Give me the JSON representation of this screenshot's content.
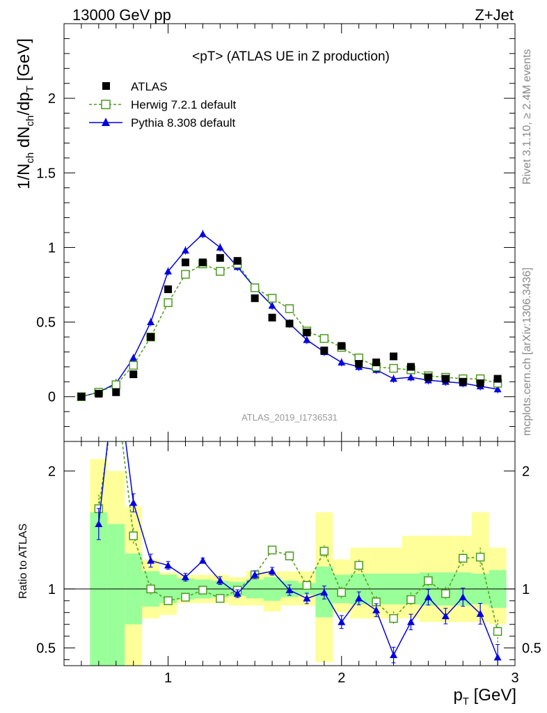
{
  "header": {
    "energy_label": "13000 GeV pp",
    "process_label": "Z+Jet",
    "plot_title": "<pT> (ATLAS UE in Z production)",
    "analysis_id": "ATLAS_2019_I1736531",
    "side_rivet": "Rivet 3.1.10, ≥ 2.4M events",
    "side_mcplots": "mcplots.cern.ch [arXiv:1306.3436]"
  },
  "chart_data": [
    {
      "type": "scatter",
      "panel": "main",
      "ylabel_main": "1/N",
      "ylabel_parts": [
        "1/N",
        "ch",
        " dN",
        "ch",
        "/dp",
        "T",
        " [GeV]"
      ],
      "xlim": [
        0.4,
        3.0
      ],
      "ylim": [
        -0.3,
        2.5
      ],
      "yticks": [
        0,
        0.5,
        1,
        1.5,
        2
      ],
      "ytick_labels": [
        "0",
        "0.5",
        "1",
        "1.5",
        "2"
      ],
      "legend_position": "top-left",
      "legend": [
        "ATLAS",
        "Herwig 7.2.1 default",
        "Pythia 8.308 default"
      ],
      "x": [
        0.5,
        0.6,
        0.7,
        0.8,
        0.9,
        1.0,
        1.1,
        1.2,
        1.3,
        1.4,
        1.5,
        1.6,
        1.7,
        1.8,
        1.9,
        2.0,
        2.1,
        2.2,
        2.3,
        2.4,
        2.5,
        2.6,
        2.7,
        2.8,
        2.9
      ],
      "series": [
        {
          "name": "ATLAS",
          "color": "#000000",
          "values": [
            0.0,
            0.02,
            0.03,
            0.15,
            0.4,
            0.72,
            0.9,
            0.9,
            0.93,
            0.91,
            0.66,
            0.53,
            0.49,
            0.43,
            0.31,
            0.34,
            0.22,
            0.23,
            0.27,
            0.2,
            0.13,
            0.12,
            0.1,
            0.09,
            0.12
          ]
        },
        {
          "name": "Herwig 7.2.1 default",
          "color": "#4c9a1e",
          "values": [
            0.0,
            0.03,
            0.08,
            0.21,
            0.4,
            0.63,
            0.82,
            0.89,
            0.84,
            0.89,
            0.73,
            0.66,
            0.59,
            0.44,
            0.39,
            0.33,
            0.26,
            0.2,
            0.19,
            0.18,
            0.14,
            0.13,
            0.12,
            0.12,
            0.09
          ]
        },
        {
          "name": "Pythia 8.308 default",
          "color": "#0000e0",
          "values": [
            0.0,
            0.03,
            0.09,
            0.26,
            0.5,
            0.84,
            0.98,
            1.09,
            1.0,
            0.87,
            0.73,
            0.61,
            0.49,
            0.38,
            0.3,
            0.23,
            0.2,
            0.18,
            0.12,
            0.13,
            0.11,
            0.1,
            0.09,
            0.07,
            0.05
          ]
        }
      ]
    },
    {
      "type": "line",
      "panel": "ratio",
      "ylabel": "Ratio to ATLAS",
      "xlabel": "p",
      "xlabel_sub": "T",
      "xlabel_unit": " [GeV]",
      "xlim": [
        0.4,
        3.0
      ],
      "ylim": [
        0.35,
        2.25
      ],
      "xticks": [
        1,
        2,
        3
      ],
      "xtick_labels": [
        "1",
        "2",
        "3"
      ],
      "yticks": [
        0.5,
        1,
        2
      ],
      "ytick_labels": [
        "0.5",
        "1",
        "2"
      ],
      "x": [
        0.6,
        0.7,
        0.8,
        0.9,
        1.0,
        1.1,
        1.2,
        1.3,
        1.4,
        1.5,
        1.6,
        1.7,
        1.8,
        1.9,
        2.0,
        2.1,
        2.2,
        2.3,
        2.4,
        2.5,
        2.6,
        2.7,
        2.8,
        2.9
      ],
      "bands": {
        "x_edges": [
          0.55,
          0.65,
          0.75,
          0.85,
          0.95,
          1.05,
          1.15,
          1.25,
          1.35,
          1.45,
          1.55,
          1.65,
          1.75,
          1.85,
          1.95,
          2.05,
          2.15,
          2.25,
          2.35,
          2.45,
          2.55,
          2.65,
          2.75,
          2.85,
          2.95
        ],
        "inner_lo": [
          0.0,
          0.0,
          0.7,
          0.85,
          0.88,
          0.91,
          0.92,
          0.93,
          0.94,
          0.92,
          0.9,
          0.93,
          0.95,
          0.76,
          0.88,
          0.87,
          0.87,
          0.87,
          0.87,
          0.86,
          0.86,
          0.86,
          0.87,
          0.84
        ],
        "inner_hi": [
          1.65,
          1.55,
          1.3,
          1.15,
          1.12,
          1.09,
          1.08,
          1.07,
          1.06,
          1.08,
          1.1,
          1.07,
          1.05,
          1.19,
          1.12,
          1.13,
          1.13,
          1.13,
          1.13,
          1.14,
          1.14,
          1.14,
          1.13,
          1.16
        ],
        "outer_lo": [
          0.0,
          0.0,
          0.0,
          0.75,
          0.78,
          0.88,
          0.88,
          0.88,
          0.86,
          0.86,
          0.81,
          0.86,
          0.86,
          0.38,
          0.8,
          0.75,
          0.75,
          0.75,
          0.75,
          0.72,
          0.72,
          0.72,
          0.72,
          0.7
        ],
        "outer_hi": [
          2.1,
          2.0,
          1.7,
          1.25,
          1.14,
          1.12,
          1.12,
          1.12,
          1.1,
          1.15,
          1.15,
          1.15,
          1.15,
          1.65,
          1.25,
          1.35,
          1.35,
          1.35,
          1.45,
          1.45,
          1.45,
          1.45,
          1.65,
          1.35
        ]
      },
      "series": [
        {
          "name": "Herwig 7.2.1 default",
          "color": "#4c9a1e",
          "values": [
            1.68,
            2.7,
            1.45,
            1.0,
            0.9,
            0.93,
            0.99,
            0.92,
            0.99,
            1.12,
            1.33,
            1.28,
            1.03,
            1.32,
            0.97,
            1.2,
            0.89,
            0.75,
            0.91,
            1.07,
            0.96,
            1.26,
            1.27,
            0.64
          ],
          "errors": [
            0.12,
            0.2,
            0.07,
            0.05,
            0.03,
            0.03,
            0.02,
            0.03,
            0.03,
            0.03,
            0.03,
            0.04,
            0.04,
            0.05,
            0.05,
            0.05,
            0.05,
            0.06,
            0.06,
            0.06,
            0.06,
            0.07,
            0.08,
            0.1
          ]
        },
        {
          "name": "Pythia 8.308 default",
          "color": "#0000e0",
          "values": [
            1.55,
            2.9,
            1.73,
            1.24,
            1.2,
            1.1,
            1.24,
            1.07,
            0.96,
            1.12,
            1.15,
            0.99,
            0.92,
            0.97,
            0.72,
            0.92,
            0.82,
            0.44,
            0.72,
            0.93,
            0.77,
            0.93,
            0.79,
            0.42
          ]
        }
      ]
    }
  ]
}
